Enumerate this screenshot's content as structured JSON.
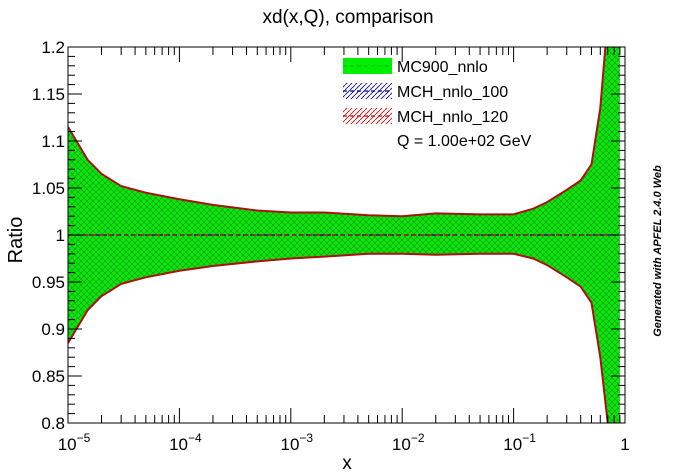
{
  "chart_data": {
    "type": "area",
    "title": "xd(x,Q), comparison",
    "xlabel": "x",
    "ylabel": "Ratio",
    "xscale": "log",
    "xlim": [
      1e-05,
      1
    ],
    "ylim": [
      0.8,
      1.2
    ],
    "grid": false,
    "legend_position": "top-right",
    "annotation": "Q = 1.00e+02 GeV",
    "side_note": "Generated with APFEL 2.4.0 Web",
    "x_ticks": [
      {
        "value": 1e-05,
        "base": "10",
        "exp": "−5"
      },
      {
        "value": 0.0001,
        "base": "10",
        "exp": "−4"
      },
      {
        "value": 0.001,
        "base": "10",
        "exp": "−3"
      },
      {
        "value": 0.01,
        "base": "10",
        "exp": "−2"
      },
      {
        "value": 0.1,
        "base": "10",
        "exp": "−1"
      },
      {
        "value": 1,
        "base": "1",
        "exp": ""
      }
    ],
    "y_ticks": [
      "0.8",
      "0.85",
      "0.9",
      "0.95",
      "1",
      "1.05",
      "1.1",
      "1.15",
      "1.2"
    ],
    "x": [
      1e-05,
      1.5e-05,
      2e-05,
      3e-05,
      5e-05,
      0.0001,
      0.0002,
      0.0005,
      0.001,
      0.002,
      0.005,
      0.01,
      0.02,
      0.05,
      0.1,
      0.15,
      0.2,
      0.3,
      0.4,
      0.5,
      0.6,
      0.7,
      0.8,
      0.9
    ],
    "series": [
      {
        "name": "MC900_nnlo",
        "color": "#00ee00",
        "line_color": "#009900",
        "central": [
          1.0,
          1.0,
          1.0,
          1.0,
          1.0,
          1.0,
          1.0,
          1.0,
          1.0,
          1.0,
          1.0,
          1.0,
          1.0,
          1.0,
          1.0,
          1.0,
          1.0,
          1.0,
          1.0,
          1.0,
          1.0,
          1.0,
          1.0,
          1.0
        ],
        "upper": [
          1.115,
          1.08,
          1.065,
          1.052,
          1.045,
          1.038,
          1.032,
          1.026,
          1.024,
          1.024,
          1.021,
          1.02,
          1.023,
          1.022,
          1.022,
          1.028,
          1.035,
          1.048,
          1.058,
          1.075,
          1.135,
          1.23,
          1.26,
          1.28
        ],
        "lower": [
          0.885,
          0.92,
          0.935,
          0.948,
          0.955,
          0.962,
          0.967,
          0.972,
          0.975,
          0.977,
          0.98,
          0.98,
          0.979,
          0.98,
          0.98,
          0.975,
          0.968,
          0.955,
          0.945,
          0.928,
          0.87,
          0.8,
          0.77,
          0.75
        ]
      },
      {
        "name": "MCH_nnlo_100",
        "color": "#000099",
        "central": [
          1.0,
          1.0,
          1.0,
          1.0,
          1.0,
          1.0,
          1.0,
          1.0,
          1.0,
          1.0,
          1.0,
          1.0,
          1.0,
          1.0,
          1.0,
          1.0,
          1.0,
          1.0,
          1.0,
          1.0,
          1.0,
          1.0,
          1.0,
          1.0
        ]
      },
      {
        "name": "MCH_nnlo_120",
        "color": "#cc0000",
        "central": [
          1.0,
          1.0,
          1.0,
          1.0,
          1.0,
          1.0,
          1.0,
          1.0,
          1.0,
          1.0,
          1.0,
          1.0,
          1.0,
          1.0,
          1.0,
          1.0,
          1.0,
          1.0,
          1.0,
          1.0,
          1.0,
          1.0,
          1.0,
          1.0
        ]
      }
    ]
  }
}
